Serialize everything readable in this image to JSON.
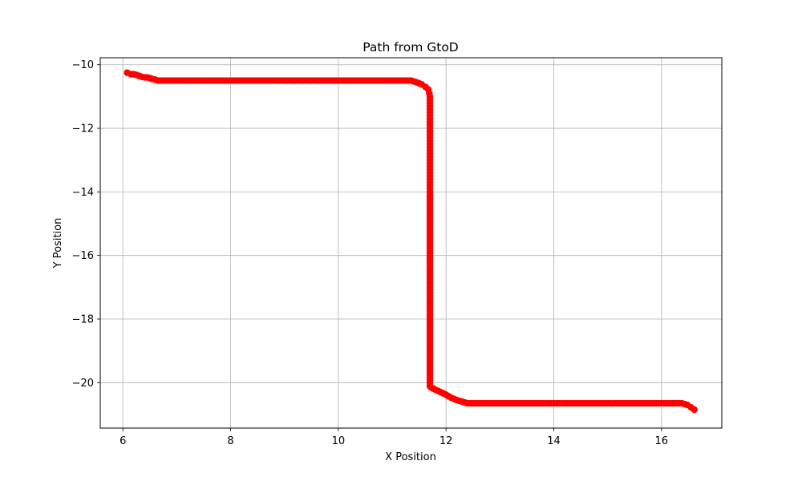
{
  "chart_data": {
    "type": "scatter",
    "title": "Path from GtoD",
    "xlabel": "X Position",
    "ylabel": "Y Position",
    "xlim": [
      5.58,
      17.12
    ],
    "ylim": [
      -21.43,
      -9.78
    ],
    "xticks": [
      6,
      8,
      10,
      12,
      14,
      16
    ],
    "yticks": [
      -10,
      -12,
      -14,
      -16,
      -18,
      -20
    ],
    "grid": true,
    "series": [
      {
        "color": "#ff0000",
        "marker": "circle",
        "x": [
          6.08,
          6.15,
          6.2,
          6.25,
          6.3,
          6.35,
          6.4,
          6.45,
          6.5,
          6.55,
          6.6,
          6.65,
          6.7,
          6.8,
          7.0,
          7.2,
          7.4,
          7.6,
          7.8,
          8.0,
          8.2,
          8.4,
          8.6,
          8.8,
          9.0,
          9.2,
          9.4,
          9.6,
          9.8,
          10.0,
          10.2,
          10.4,
          10.6,
          10.8,
          11.0,
          11.2,
          11.35,
          11.45,
          11.55,
          11.62,
          11.67,
          11.69,
          11.7,
          11.7,
          11.7,
          11.7,
          11.7,
          11.7,
          11.7,
          11.7,
          11.7,
          11.7,
          11.7,
          11.7,
          11.7,
          11.7,
          11.7,
          11.7,
          11.7,
          11.7,
          11.7,
          11.7,
          11.7,
          11.7,
          11.7,
          11.7,
          11.72,
          11.8,
          11.9,
          12.0,
          12.1,
          12.2,
          12.3,
          12.4,
          12.6,
          12.8,
          13.0,
          13.2,
          13.4,
          13.6,
          13.8,
          14.0,
          14.2,
          14.4,
          14.6,
          14.8,
          15.0,
          15.2,
          15.4,
          15.6,
          15.8,
          16.0,
          16.2,
          16.38,
          16.48,
          16.55,
          16.61
        ],
        "y": [
          -10.25,
          -10.3,
          -10.3,
          -10.32,
          -10.35,
          -10.38,
          -10.4,
          -10.4,
          -10.42,
          -10.45,
          -10.47,
          -10.5,
          -10.5,
          -10.5,
          -10.5,
          -10.5,
          -10.5,
          -10.5,
          -10.5,
          -10.5,
          -10.5,
          -10.5,
          -10.5,
          -10.5,
          -10.5,
          -10.5,
          -10.5,
          -10.5,
          -10.5,
          -10.5,
          -10.5,
          -10.5,
          -10.5,
          -10.5,
          -10.5,
          -10.5,
          -10.5,
          -10.55,
          -10.62,
          -10.7,
          -10.78,
          -10.9,
          -11.0,
          -11.3,
          -11.6,
          -11.9,
          -12.2,
          -12.5,
          -12.8,
          -13.1,
          -13.4,
          -13.7,
          -14.0,
          -14.4,
          -14.8,
          -15.2,
          -15.6,
          -16.0,
          -16.5,
          -17.0,
          -17.5,
          -18.0,
          -18.5,
          -19.0,
          -19.5,
          -20.1,
          -20.15,
          -20.22,
          -20.3,
          -20.38,
          -20.48,
          -20.55,
          -20.6,
          -20.65,
          -20.65,
          -20.65,
          -20.65,
          -20.65,
          -20.65,
          -20.65,
          -20.65,
          -20.65,
          -20.65,
          -20.65,
          -20.65,
          -20.65,
          -20.65,
          -20.65,
          -20.65,
          -20.65,
          -20.65,
          -20.65,
          -20.65,
          -20.65,
          -20.7,
          -20.78,
          -20.85
        ]
      }
    ]
  }
}
